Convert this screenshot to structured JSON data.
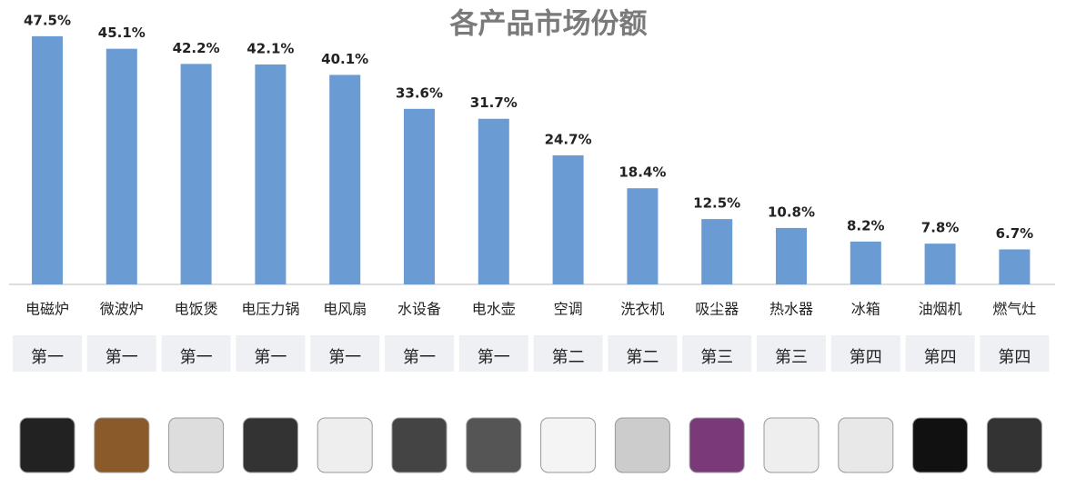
{
  "chart_data": {
    "type": "bar",
    "title": "各产品市场份额",
    "categories": [
      "电磁炉",
      "微波炉",
      "电饭煲",
      "电压力锅",
      "电风扇",
      "水设备",
      "电水壶",
      "空调",
      "洗衣机",
      "吸尘器",
      "热水器",
      "冰箱",
      "油烟机",
      "燃气灶"
    ],
    "values": [
      47.5,
      45.1,
      42.2,
      42.1,
      40.1,
      33.6,
      31.7,
      24.7,
      18.4,
      12.5,
      10.8,
      8.2,
      7.8,
      6.7
    ],
    "value_labels": [
      "47.5%",
      "45.1%",
      "42.2%",
      "42.1%",
      "40.1%",
      "33.6%",
      "31.7%",
      "24.7%",
      "18.4%",
      "12.5%",
      "10.8%",
      "8.2%",
      "7.8%",
      "6.7%"
    ],
    "ranks": [
      "第一",
      "第一",
      "第一",
      "第一",
      "第一",
      "第一",
      "第一",
      "第二",
      "第二",
      "第三",
      "第三",
      "第四",
      "第四",
      "第四"
    ],
    "color": "#6a9bd3"
  }
}
